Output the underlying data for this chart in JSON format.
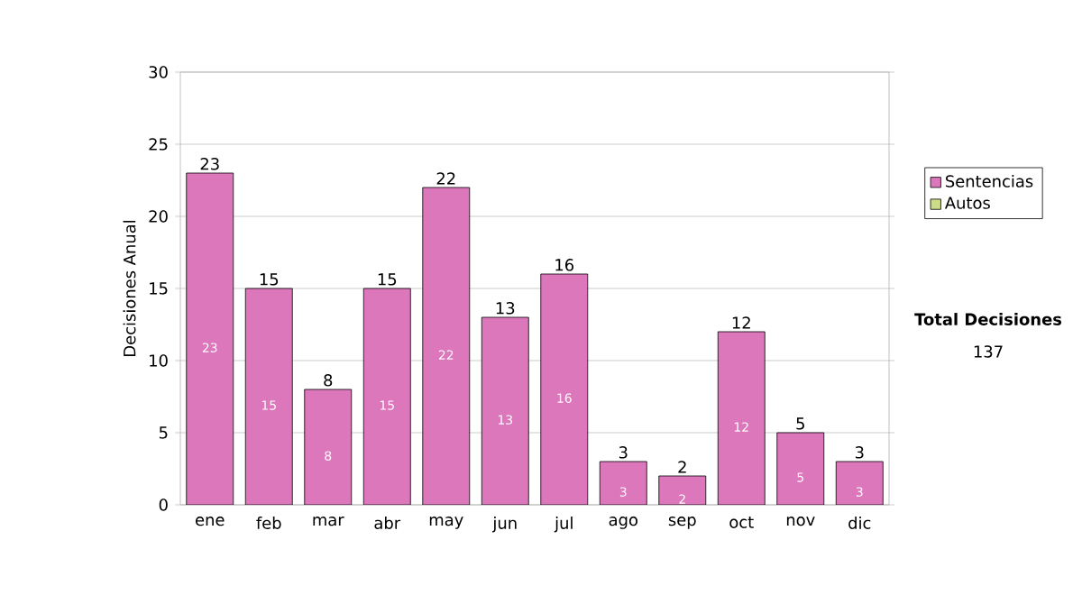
{
  "chart_data": {
    "type": "bar",
    "ylabel": "Decisiones Anual",
    "categories": [
      "ene",
      "feb",
      "mar",
      "abr",
      "may",
      "jun",
      "jul",
      "ago",
      "sep",
      "oct",
      "nov",
      "dic"
    ],
    "series": [
      {
        "name": "Sentencias",
        "color": "#dd77bb",
        "values": [
          23,
          15,
          8,
          15,
          22,
          13,
          16,
          3,
          2,
          12,
          5,
          3
        ],
        "value_labels": [
          "23",
          "15",
          "8",
          "15",
          "22",
          "13",
          "16",
          "3",
          "2",
          "12",
          "5",
          "3"
        ]
      },
      {
        "name": "Autos",
        "color": "#ccdd88",
        "values": [
          0,
          0,
          0,
          0,
          0,
          0,
          0,
          0,
          0,
          0,
          0,
          0
        ]
      }
    ],
    "stacked": true,
    "totals": [
      "23",
      "15",
      "8",
      "15",
      "22",
      "13",
      "16",
      "3",
      "2",
      "12",
      "5",
      "3"
    ],
    "ylim": [
      0,
      30
    ],
    "yticks": [
      0,
      5,
      10,
      15,
      20,
      25,
      30
    ],
    "grid": "y",
    "legend": "right",
    "annotations": [
      "Total Decisiones",
      "137"
    ]
  }
}
